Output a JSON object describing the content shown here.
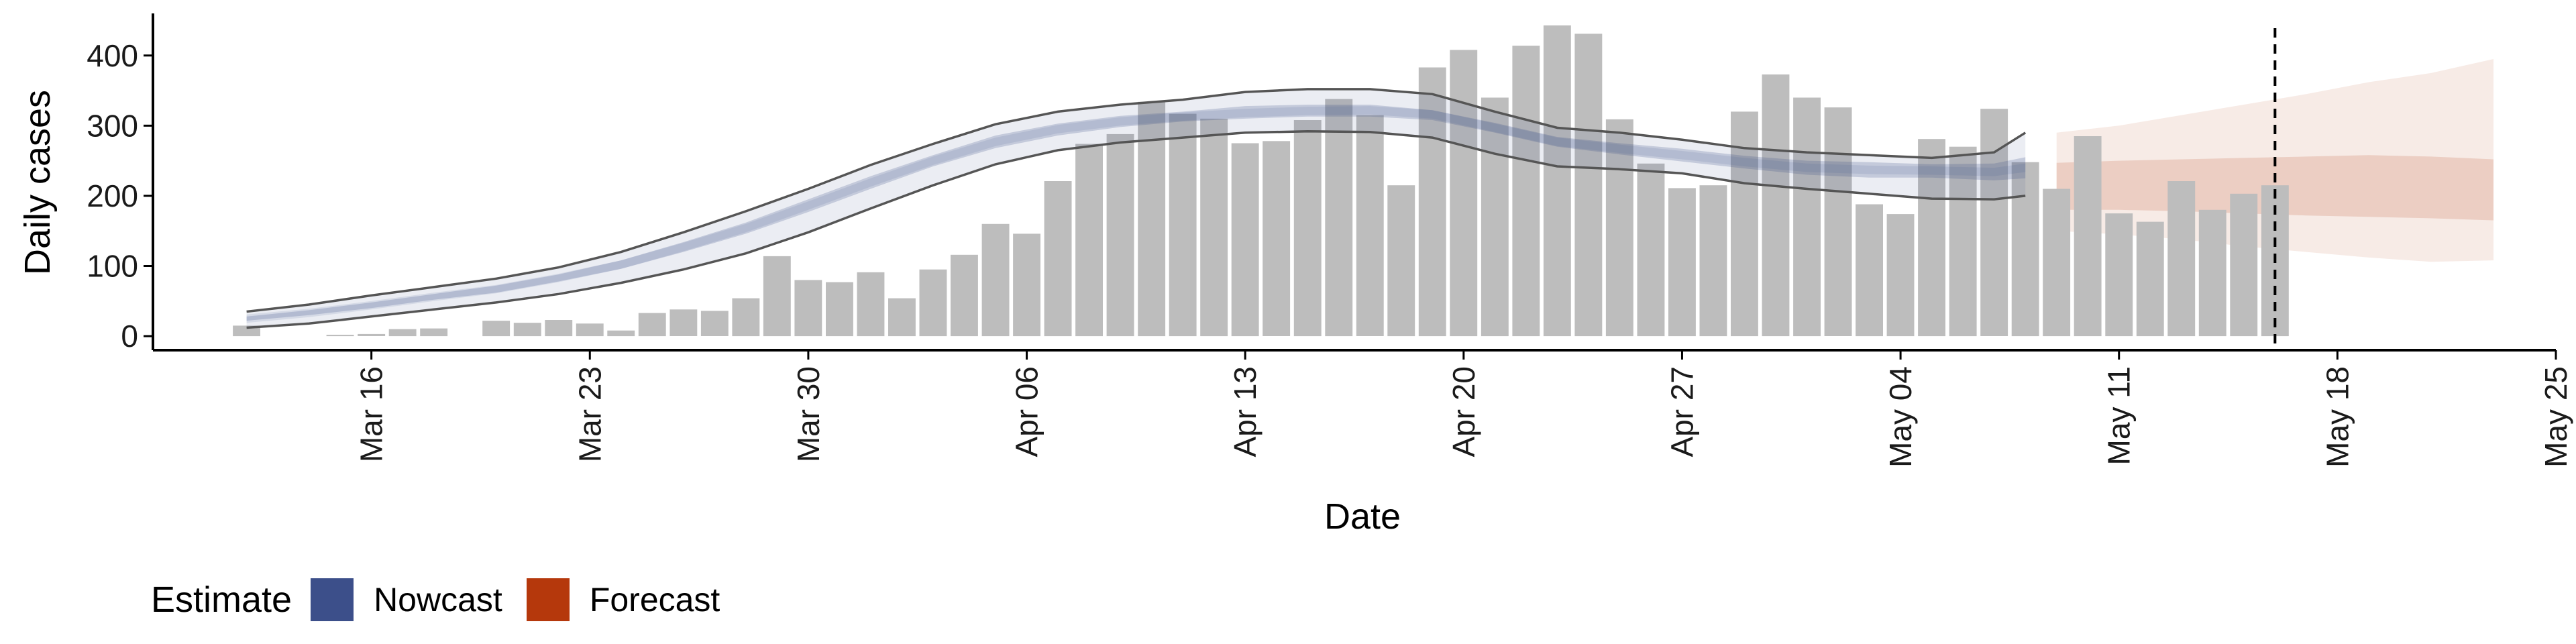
{
  "chart_data": {
    "type": "bar",
    "title": "",
    "xlabel": "Date",
    "ylabel": "Daily cases",
    "ylim": [
      -20,
      460
    ],
    "yticks": [
      0,
      100,
      200,
      300,
      400
    ],
    "x_axis_type": "date",
    "x_ticks": [
      "2020-03-16",
      "2020-03-23",
      "2020-03-30",
      "2020-04-06",
      "2020-04-13",
      "2020-04-20",
      "2020-04-27",
      "2020-05-04",
      "2020-05-11",
      "2020-05-18",
      "2020-05-25"
    ],
    "x_tick_labels": [
      "Mar 16",
      "Mar 23",
      "Mar 30",
      "Apr 06",
      "Apr 13",
      "Apr 20",
      "Apr 27",
      "May 04",
      "May 11",
      "May 18",
      "May 25"
    ],
    "xlim": [
      "2020-03-09",
      "2020-05-25"
    ],
    "vline_date": "2020-05-16",
    "bars": {
      "name": "Daily cases",
      "color": "#bdbdbd",
      "dates": [
        "2020-03-12",
        "2020-03-13",
        "2020-03-14",
        "2020-03-15",
        "2020-03-16",
        "2020-03-17",
        "2020-03-18",
        "2020-03-19",
        "2020-03-20",
        "2020-03-21",
        "2020-03-22",
        "2020-03-23",
        "2020-03-24",
        "2020-03-25",
        "2020-03-26",
        "2020-03-27",
        "2020-03-28",
        "2020-03-29",
        "2020-03-30",
        "2020-03-31",
        "2020-04-01",
        "2020-04-02",
        "2020-04-03",
        "2020-04-04",
        "2020-04-05",
        "2020-04-06",
        "2020-04-07",
        "2020-04-08",
        "2020-04-09",
        "2020-04-10",
        "2020-04-11",
        "2020-04-12",
        "2020-04-13",
        "2020-04-14",
        "2020-04-15",
        "2020-04-16",
        "2020-04-17",
        "2020-04-18",
        "2020-04-19",
        "2020-04-20",
        "2020-04-21",
        "2020-04-22",
        "2020-04-23",
        "2020-04-24",
        "2020-04-25",
        "2020-04-26",
        "2020-04-27",
        "2020-04-28",
        "2020-04-29",
        "2020-04-30",
        "2020-05-01",
        "2020-05-02",
        "2020-05-03",
        "2020-05-04",
        "2020-05-05",
        "2020-05-06",
        "2020-05-07",
        "2020-05-08",
        "2020-05-09",
        "2020-05-10",
        "2020-05-11",
        "2020-05-12",
        "2020-05-13",
        "2020-05-14",
        "2020-05-15",
        "2020-05-16"
      ],
      "values": [
        15,
        0,
        0,
        2,
        3,
        10,
        11,
        0,
        22,
        19,
        23,
        18,
        8,
        33,
        38,
        36,
        54,
        114,
        80,
        77,
        91,
        54,
        95,
        116,
        160,
        146,
        221,
        274,
        288,
        334,
        317,
        310,
        275,
        278,
        308,
        338,
        315,
        215,
        383,
        408,
        340,
        414,
        443,
        431,
        309,
        246,
        211,
        215,
        320,
        373,
        340,
        326,
        188,
        174,
        281,
        270,
        324,
        248,
        210,
        285,
        175,
        163,
        221,
        180,
        203,
        215
      ]
    },
    "nowcast": {
      "name": "Nowcast",
      "color": "#3c4f8a",
      "dates": [
        "2020-03-12",
        "2020-03-14",
        "2020-03-16",
        "2020-03-18",
        "2020-03-20",
        "2020-03-22",
        "2020-03-24",
        "2020-03-26",
        "2020-03-28",
        "2020-03-30",
        "2020-04-01",
        "2020-04-03",
        "2020-04-05",
        "2020-04-07",
        "2020-04-09",
        "2020-04-11",
        "2020-04-13",
        "2020-04-15",
        "2020-04-17",
        "2020-04-19",
        "2020-04-21",
        "2020-04-23",
        "2020-04-25",
        "2020-04-27",
        "2020-04-29",
        "2020-05-01",
        "2020-05-03",
        "2020-05-05",
        "2020-05-07",
        "2020-05-08"
      ],
      "outer_upper": [
        35,
        45,
        58,
        70,
        82,
        98,
        120,
        148,
        178,
        210,
        244,
        274,
        302,
        320,
        330,
        337,
        348,
        352,
        352,
        345,
        320,
        297,
        290,
        280,
        268,
        262,
        258,
        254,
        262,
        290
      ],
      "upper_mid": [
        28,
        37,
        48,
        60,
        72,
        88,
        108,
        134,
        162,
        195,
        228,
        258,
        286,
        303,
        314,
        320,
        328,
        330,
        330,
        322,
        304,
        284,
        275,
        267,
        257,
        250,
        248,
        245,
        246,
        255
      ],
      "median": [
        25,
        33,
        44,
        56,
        67,
        83,
        102,
        127,
        154,
        186,
        219,
        250,
        277,
        295,
        306,
        313,
        318,
        321,
        322,
        316,
        297,
        277,
        267,
        258,
        248,
        240,
        237,
        236,
        234,
        240
      ],
      "lower_mid": [
        22,
        30,
        40,
        52,
        62,
        78,
        96,
        120,
        146,
        177,
        210,
        242,
        268,
        286,
        298,
        306,
        310,
        313,
        313,
        308,
        290,
        270,
        259,
        249,
        239,
        230,
        226,
        226,
        222,
        225
      ],
      "outer_lower": [
        12,
        18,
        28,
        38,
        48,
        60,
        76,
        95,
        118,
        148,
        182,
        215,
        245,
        265,
        276,
        283,
        290,
        292,
        291,
        283,
        260,
        242,
        238,
        232,
        218,
        210,
        203,
        196,
        195,
        200
      ]
    },
    "forecast": {
      "name": "Forecast",
      "color": "#b5380c",
      "dates": [
        "2020-05-09",
        "2020-05-11",
        "2020-05-13",
        "2020-05-15",
        "2020-05-17",
        "2020-05-19",
        "2020-05-21",
        "2020-05-23"
      ],
      "outer_upper": [
        290,
        300,
        315,
        330,
        345,
        362,
        375,
        395
      ],
      "upper_mid": [
        247,
        250,
        252,
        254,
        256,
        258,
        256,
        252
      ],
      "lower_mid": [
        180,
        180,
        178,
        175,
        172,
        170,
        168,
        165
      ],
      "outer_lower": [
        150,
        145,
        138,
        128,
        120,
        112,
        106,
        108
      ]
    },
    "legend": {
      "title": "Estimate",
      "placement": "bottom-left",
      "items": [
        {
          "label": "Nowcast",
          "color": "#3c4f8a"
        },
        {
          "label": "Forecast",
          "color": "#b5380c"
        }
      ]
    }
  }
}
